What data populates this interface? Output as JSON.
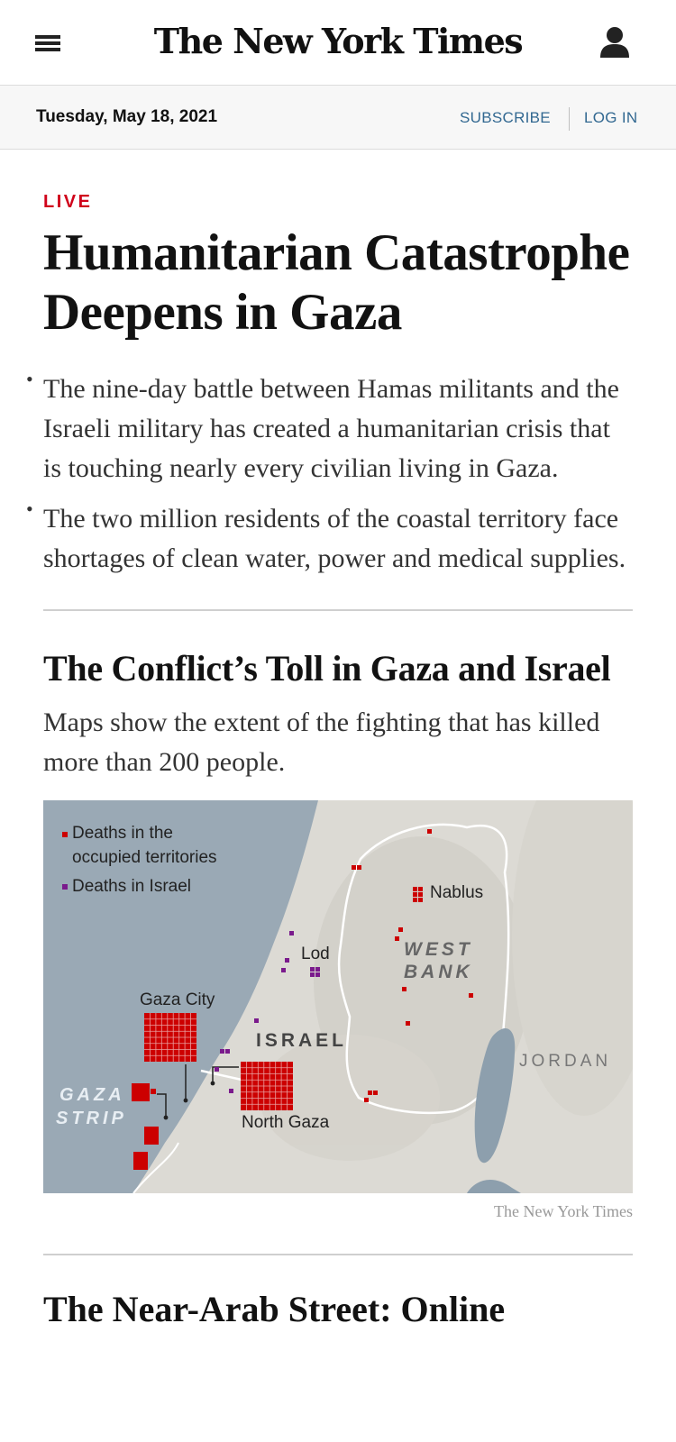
{
  "masthead": {
    "logo_text": "The New York Times",
    "menu_icon": "hamburger-menu-icon",
    "account_icon": "user-account-icon"
  },
  "datebar": {
    "date": "Tuesday, May 18, 2021",
    "subscribe_label": "SUBSCRIBE",
    "login_label": "LOG IN"
  },
  "article": {
    "live_label": "LIVE",
    "headline": "Humanitarian Catastrophe Deepens in Gaza",
    "summary": [
      "The nine-day battle between Hamas militants and the Israeli military has created a humanitarian crisis that is touching nearly every civilian living in Gaza.",
      "The two million residents of the coastal territory face shortages of clean water, power and medical supplies."
    ]
  },
  "section": {
    "title": "The Conflict’s Toll in Gaza and Israel",
    "description": "Maps show the extent of the fighting that has killed more than 200 people.",
    "credit": "The New York Times"
  },
  "map": {
    "legend": {
      "occupied_line1": "Deaths in the",
      "occupied_line2": "occupied territories",
      "israel": "Deaths in Israel"
    },
    "labels": {
      "gaza_city": "Gaza City",
      "north_gaza": "North Gaza",
      "lod": "Lod",
      "nablus": "Nablus",
      "israel": "ISRAEL",
      "west": "WEST",
      "bank": "BANK",
      "gaza": "GAZA",
      "strip": "STRIP",
      "jordan": "JORDAN"
    },
    "colors": {
      "occupied_deaths": "#cc0000",
      "israel_deaths": "#7a1a8c",
      "sea": "#9aa9b5",
      "land": "#dcdad4"
    }
  },
  "next_section": {
    "title": "The Near-Arab Street: Online"
  }
}
